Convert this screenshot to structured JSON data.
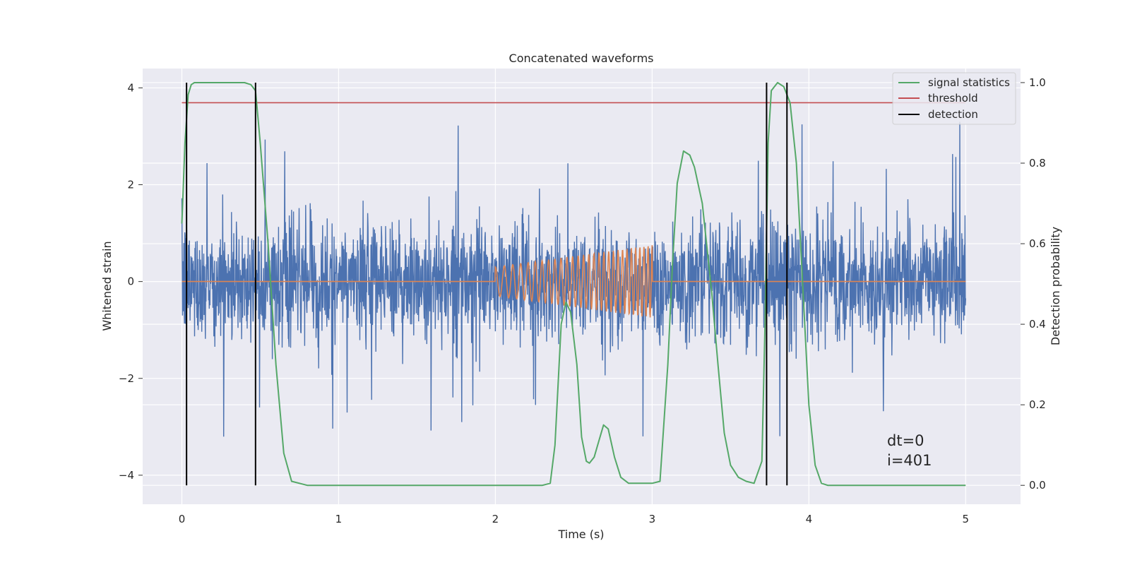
{
  "chart_data": {
    "type": "line",
    "title": "Concatenated waveforms",
    "xlabel": "Time (s)",
    "ylabel": "Whitened strain",
    "y2label": "Detection probability",
    "xlim": [
      -0.25,
      5.35
    ],
    "ylim": [
      -4.6,
      4.4
    ],
    "y2lim": [
      -0.047,
      1.035
    ],
    "x_ticks": [
      "0",
      "1",
      "2",
      "3",
      "4",
      "5"
    ],
    "x_tick_values": [
      0,
      1,
      2,
      3,
      4,
      5
    ],
    "y_ticks": [
      "−4",
      "−2",
      "0",
      "2",
      "4"
    ],
    "y_tick_values": [
      -4,
      -2,
      0,
      2,
      4
    ],
    "y2_ticks": [
      "0.0",
      "0.2",
      "0.4",
      "0.6",
      "0.8",
      "1.0"
    ],
    "y2_tick_values": [
      0,
      0.2,
      0.4,
      0.6,
      0.8,
      1.0
    ],
    "grid": true,
    "legend_position": "top-right",
    "legend": [
      {
        "label": "signal statistics",
        "color": "#55a868"
      },
      {
        "label": "threshold",
        "color": "#c44e52"
      },
      {
        "label": "detection",
        "color": "#000000"
      }
    ],
    "series": [
      {
        "axis": "left",
        "color": "#4c72b0",
        "kind": "noise",
        "x_range": [
          0,
          5
        ],
        "typical_amplitude": 1.2,
        "max_peak": 4.0
      },
      {
        "axis": "left",
        "color": "#dd8452",
        "kind": "chirp",
        "x_range": [
          0,
          5
        ],
        "chirp_start": 2.0,
        "chirp_end": 3.0,
        "chirp_amplitude_start": 0.3,
        "chirp_amplitude_end": 0.75,
        "chirp_cycles": 28
      },
      {
        "name": "signal statistics",
        "axis": "right",
        "color": "#55a868",
        "x": [
          0.0,
          0.02,
          0.04,
          0.06,
          0.08,
          0.12,
          0.2,
          0.3,
          0.4,
          0.44,
          0.47,
          0.5,
          0.55,
          0.6,
          0.65,
          0.7,
          0.8,
          1.0,
          1.5,
          2.0,
          2.3,
          2.35,
          2.38,
          2.42,
          2.45,
          2.48,
          2.52,
          2.55,
          2.58,
          2.6,
          2.63,
          2.66,
          2.69,
          2.72,
          2.76,
          2.8,
          2.85,
          2.9,
          2.95,
          3.0,
          3.05,
          3.1,
          3.13,
          3.16,
          3.2,
          3.24,
          3.27,
          3.32,
          3.38,
          3.42,
          3.46,
          3.5,
          3.55,
          3.6,
          3.65,
          3.7,
          3.72,
          3.74,
          3.76,
          3.8,
          3.84,
          3.88,
          3.92,
          3.96,
          4.0,
          4.04,
          4.08,
          4.12,
          4.2,
          4.5,
          5.0
        ],
        "y": [
          0.65,
          0.85,
          0.97,
          0.995,
          1.0,
          1.0,
          1.0,
          1.0,
          1.0,
          0.995,
          0.98,
          0.85,
          0.6,
          0.3,
          0.08,
          0.01,
          0.0,
          0.0,
          0.0,
          0.0,
          0.0,
          0.005,
          0.1,
          0.4,
          0.455,
          0.43,
          0.3,
          0.12,
          0.06,
          0.055,
          0.07,
          0.11,
          0.15,
          0.14,
          0.07,
          0.02,
          0.005,
          0.005,
          0.005,
          0.005,
          0.01,
          0.3,
          0.55,
          0.75,
          0.83,
          0.82,
          0.79,
          0.7,
          0.48,
          0.3,
          0.13,
          0.05,
          0.02,
          0.01,
          0.005,
          0.06,
          0.4,
          0.85,
          0.98,
          1.0,
          0.99,
          0.95,
          0.8,
          0.5,
          0.2,
          0.05,
          0.005,
          0.0,
          0.0,
          0.0,
          0.0
        ]
      },
      {
        "name": "threshold",
        "axis": "right",
        "color": "#c44e52",
        "x": [
          0,
          5
        ],
        "y": [
          0.95,
          0.95
        ]
      }
    ],
    "detections": [
      {
        "start": 0.03,
        "end": 0.47
      },
      {
        "start": 3.73,
        "end": 3.86
      }
    ],
    "annotations": [
      "dt=0",
      "i=401"
    ]
  }
}
